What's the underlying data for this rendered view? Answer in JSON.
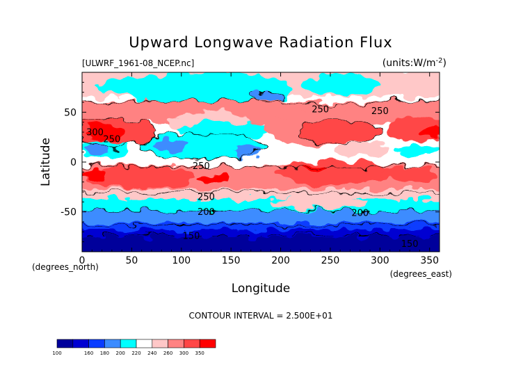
{
  "chart_data": {
    "type": "heatmap",
    "title": "Upward Longwave Radiation Flux",
    "subtitle_left": "[ULWRF_1961-08_NCEP.nc]",
    "subtitle_right": "(units:W/m^-2)",
    "xlabel": "Longitude",
    "ylabel": "Latitude",
    "x_unit_label": "(degrees_east)",
    "y_unit_label": "(degrees_north)",
    "xlim": [
      0,
      360
    ],
    "ylim": [
      -90,
      90
    ],
    "x_ticks": [
      0,
      50,
      100,
      150,
      200,
      250,
      300,
      350
    ],
    "y_ticks": [
      -50,
      0,
      50
    ],
    "contour_interval_text": "CONTOUR INTERVAL = 2.500E+01",
    "contour_labels": [
      {
        "text": "300",
        "lon": 13,
        "lat": 27
      },
      {
        "text": "250",
        "lon": 30,
        "lat": 20
      },
      {
        "text": "250",
        "lon": 240,
        "lat": 50
      },
      {
        "text": "250",
        "lon": 300,
        "lat": 48
      },
      {
        "text": "250",
        "lon": 120,
        "lat": -7
      },
      {
        "text": "250",
        "lon": 125,
        "lat": -38
      },
      {
        "text": "200",
        "lon": 125,
        "lat": -53
      },
      {
        "text": "200",
        "lon": 280,
        "lat": -54
      },
      {
        "text": "150",
        "lon": 110,
        "lat": -77
      },
      {
        "text": "150",
        "lon": 330,
        "lat": -85
      }
    ],
    "colorbar": {
      "ticks": [
        100,
        160,
        180,
        200,
        220,
        240,
        260,
        300,
        350
      ],
      "colors": [
        "#00009b",
        "#0000d2",
        "#0a3cff",
        "#3c8cff",
        "#00ffff",
        "#ffffff",
        "#ffc8c8",
        "#ff8282",
        "#ff4646",
        "#ff0000"
      ]
    },
    "grid": false
  }
}
